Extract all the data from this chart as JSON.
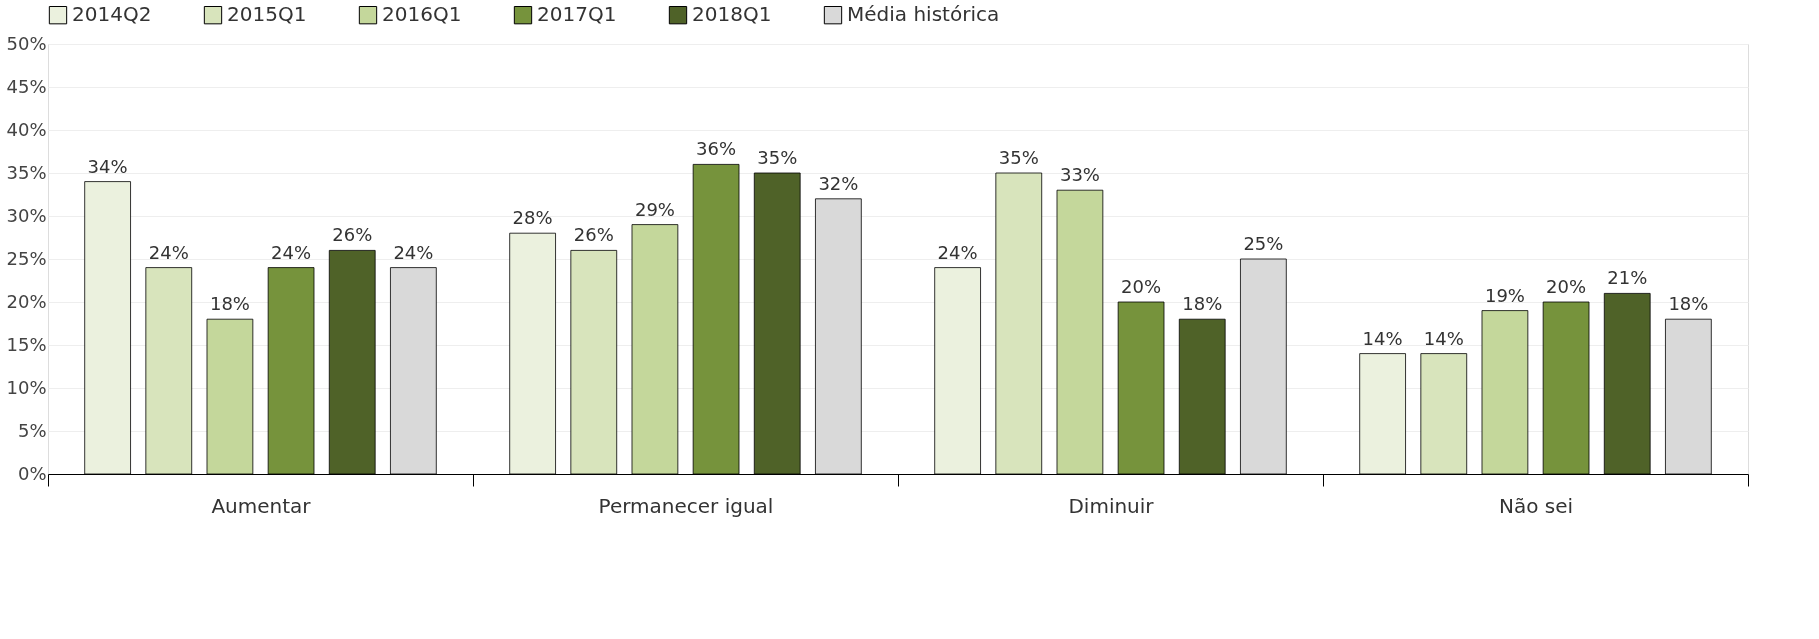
{
  "chart_data": {
    "type": "bar",
    "categories": [
      "Aumentar",
      "Permanecer igual",
      "Diminuir",
      "Não sei"
    ],
    "series": [
      {
        "name": "2014Q2",
        "color": "#ebf1de",
        "values": [
          34,
          28,
          24,
          14
        ],
        "value_labels": [
          "34%",
          "28%",
          "24%",
          "14%"
        ]
      },
      {
        "name": "2015Q1",
        "color": "#d8e4bc",
        "values": [
          24,
          26,
          35,
          14
        ],
        "value_labels": [
          "24%",
          "26%",
          "35%",
          "14%"
        ]
      },
      {
        "name": "2016Q1",
        "color": "#c4d79b",
        "values": [
          18,
          29,
          33,
          19
        ],
        "value_labels": [
          "18%",
          "29%",
          "33%",
          "19%"
        ]
      },
      {
        "name": "2017Q1",
        "color": "#76933c",
        "values": [
          24,
          36,
          20,
          20
        ],
        "value_labels": [
          "24%",
          "36%",
          "20%",
          "20%"
        ]
      },
      {
        "name": "2018Q1",
        "color": "#4f6228",
        "values": [
          26,
          35,
          18,
          21
        ],
        "value_labels": [
          "26%",
          "35%",
          "18%",
          "21%"
        ]
      },
      {
        "name": "Média histórica",
        "color": "#d9d9d9",
        "values": [
          24,
          32,
          25,
          18
        ],
        "value_labels": [
          "24%",
          "32%",
          "25%",
          "18%"
        ]
      }
    ],
    "ylim": [
      0,
      50
    ],
    "yticks": [
      {
        "value": 0,
        "label": "0%"
      },
      {
        "value": 5,
        "label": "5%"
      },
      {
        "value": 10,
        "label": "10%"
      },
      {
        "value": 15,
        "label": "15%"
      },
      {
        "value": 20,
        "label": "20%"
      },
      {
        "value": 25,
        "label": "25%"
      },
      {
        "value": 30,
        "label": "30%"
      },
      {
        "value": 35,
        "label": "35%"
      },
      {
        "value": 40,
        "label": "40%"
      },
      {
        "value": 45,
        "label": "45%"
      },
      {
        "value": 50,
        "label": "50%"
      }
    ],
    "grid": "y",
    "legend": "top"
  }
}
